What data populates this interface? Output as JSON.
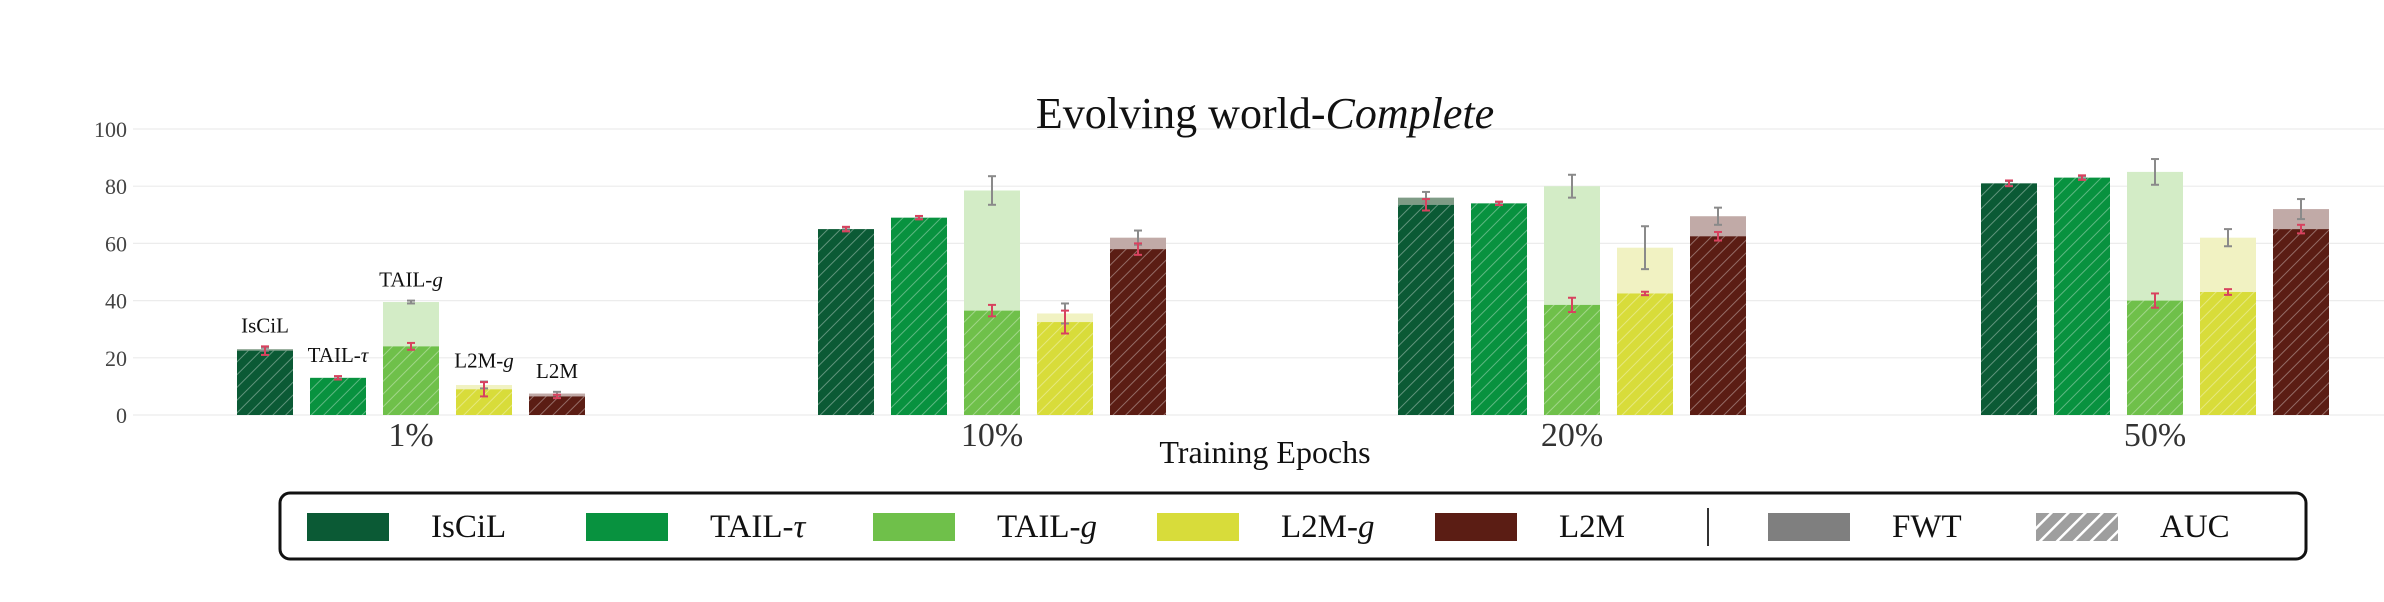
{
  "chart_data": {
    "type": "bar",
    "title_prefix": "Evolving world-",
    "title_emphasis": "Complete",
    "xlabel": "Training Epochs",
    "ylabel": "",
    "ylim": [
      0,
      100
    ],
    "yticks": [
      "0",
      "20",
      "40",
      "60",
      "80",
      "100"
    ],
    "grid": true,
    "categories": [
      "1%",
      "10%",
      "20%",
      "50%"
    ],
    "series": [
      {
        "name": "IsCiL",
        "label_base": "IsCiL",
        "label_italic": "",
        "color": "#0b5a35",
        "light_color": "#7f9b86",
        "auc": [
          22.5,
          65,
          73.5,
          81
        ],
        "fwt": [
          23,
          65,
          76,
          81
        ],
        "auc_err": [
          1.5,
          0.8,
          2,
          1
        ],
        "fwt_err": [
          0.5,
          0.5,
          2,
          0.8
        ]
      },
      {
        "name": "TAIL-τ",
        "label_base": "TAIL-",
        "label_italic": "τ",
        "color": "#08923f",
        "light_color": "#9fd3ae",
        "auc": [
          13,
          69,
          74,
          83
        ],
        "fwt": [
          13,
          69,
          74,
          83
        ],
        "auc_err": [
          0.6,
          0.6,
          0.6,
          0.8
        ],
        "fwt_err": [
          0.5,
          0.5,
          0.5,
          0.5
        ]
      },
      {
        "name": "TAIL-g",
        "label_base": "TAIL-",
        "label_italic": "g",
        "color": "#6fc04a",
        "light_color": "#d3ecc6",
        "auc": [
          24,
          36.5,
          38.5,
          40
        ],
        "fwt": [
          39.5,
          78.5,
          80,
          85
        ],
        "auc_err": [
          1.2,
          2,
          2.5,
          2.5
        ],
        "fwt_err": [
          0.5,
          5,
          4,
          4.5
        ]
      },
      {
        "name": "L2M-g",
        "label_base": "L2M-",
        "label_italic": "g",
        "color": "#d8dc3a",
        "light_color": "#f1f2c2",
        "auc": [
          9,
          32.5,
          42.5,
          43
        ],
        "fwt": [
          10.5,
          35.5,
          58.5,
          62
        ],
        "auc_err": [
          2.5,
          4,
          0.6,
          1
        ],
        "fwt_err": [
          1.2,
          3.5,
          7.5,
          3
        ]
      },
      {
        "name": "L2M",
        "label_base": "L2M",
        "label_italic": "",
        "color": "#5b1d14",
        "light_color": "#c1aaa7",
        "auc": [
          6.5,
          58,
          62.5,
          65
        ],
        "fwt": [
          7.5,
          62,
          69.5,
          72
        ],
        "auc_err": [
          0.6,
          2,
          1.5,
          1.5
        ],
        "fwt_err": [
          0.6,
          2.5,
          3,
          3.5
        ]
      }
    ],
    "legend": {
      "placement": "bottom",
      "extra": [
        {
          "name": "FWT",
          "color": "#7f7f7f"
        },
        {
          "name": "AUC",
          "color": "#9e9e9e"
        }
      ]
    },
    "error_color_auc": "#d8425f",
    "error_color_fwt": "#8a8a8a"
  }
}
